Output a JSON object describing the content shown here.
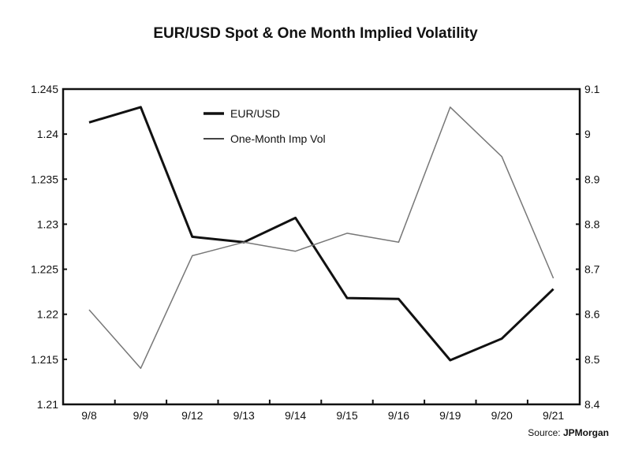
{
  "chart_data": {
    "type": "line",
    "title": "EUR/USD Spot & One Month Implied Volatility",
    "source_label": "Source:",
    "source_name": "JPMorgan",
    "categories": [
      "9/8",
      "9/9",
      "9/12",
      "9/13",
      "9/14",
      "9/15",
      "9/16",
      "9/19",
      "9/20",
      "9/21"
    ],
    "left_axis": {
      "ylim": [
        1.21,
        1.245
      ],
      "ticks": [
        "1.21",
        "1.215",
        "1.22",
        "1.225",
        "1.23",
        "1.235",
        "1.24",
        "1.245"
      ]
    },
    "right_axis": {
      "ylim": [
        8.4,
        9.1
      ],
      "ticks": [
        "8.4",
        "8.5",
        "8.6",
        "8.7",
        "8.8",
        "8.9",
        "9",
        "9.1"
      ]
    },
    "grid": false,
    "legend_position": "top-center",
    "series": [
      {
        "name": "EUR/USD",
        "axis": "left",
        "color": "#111111",
        "style": "thick",
        "values": [
          1.2413,
          1.243,
          1.2286,
          1.228,
          1.2307,
          1.2218,
          1.2217,
          1.2149,
          1.2173,
          1.2228
        ]
      },
      {
        "name": "One-Month Imp Vol",
        "axis": "right",
        "color": "#777777",
        "style": "thin",
        "values": [
          8.61,
          8.48,
          8.73,
          8.76,
          8.74,
          8.78,
          8.76,
          9.06,
          8.95,
          8.68
        ]
      }
    ]
  }
}
